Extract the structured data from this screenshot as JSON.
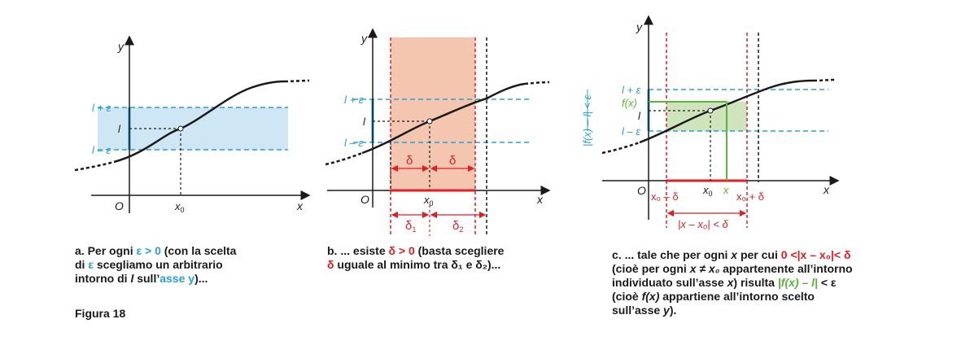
{
  "colors": {
    "blue": "#2a9fd8",
    "red": "#e01e24",
    "green": "#5ab33a",
    "curve": "#1a1a1a",
    "fill_blue": "#cfe6f5",
    "fill_orange": "#f4c6b0",
    "fill_green": "#cfe4bd"
  },
  "panel_a": {
    "axis_x": "x",
    "axis_y": "y",
    "origin": "O",
    "x0": "x",
    "x0_sub": "0",
    "l_plus": "l + ε",
    "l": "l",
    "l_minus": "l – ε",
    "caption": {
      "letter": "a.",
      "line1_part1": "Per ogni",
      "eps_gt": "ε > 0",
      "line1_part2": "(con la scelta",
      "line2_part1": "di",
      "eps": "ε",
      "line2_part2": "scegliamo un arbitrario",
      "line3_part1": "intorno di",
      "l": "l",
      "line3_part2": "sull’",
      "asse_y": "asse y",
      "line3_end": ")..."
    }
  },
  "panel_b": {
    "axis_x": "x",
    "axis_y": "y",
    "origin": "O",
    "x0": "x",
    "x0_sub": "0",
    "l_plus": "l + ε",
    "l": "l",
    "l_minus": "l – ε",
    "delta": "δ",
    "delta1": "δ",
    "delta1_sub": "1",
    "delta2": "δ",
    "delta2_sub": "2",
    "caption": {
      "letter": "b.",
      "line1_part1": "... esiste",
      "delta_gt": "δ > 0",
      "line1_part2": "(basta scegliere",
      "delta": "δ",
      "line2_part2": "uguale al minimo tra δ₁ e δ₂)..."
    }
  },
  "panel_c": {
    "axis_x": "x",
    "axis_y": "y",
    "origin": "O",
    "x0": "x",
    "x0_sub": "0",
    "x_mark": "x",
    "l_plus": "l + ε",
    "fx": "f(x)",
    "l": "l",
    "l_minus": "l – ε",
    "x0_minus_delta": "x₀ – δ",
    "x0_plus_delta": "x₀ + δ",
    "abs_x": "|x – x₀| < δ",
    "abs_f": "|f(x) – l| < ε",
    "caption": {
      "letter": "c.",
      "line1_part1": "... tale che per ogni",
      "line1_x": "x",
      "line1_part2": "per cui",
      "line1_cond": "0 <|x – x₀|< δ",
      "line2_part1": "(cioè per ogni",
      "line2_neq": "x ≠ x₀",
      "line2_part2": "appartenente all’intorno",
      "line3_part1": "individuato sull’asse",
      "line3_x": "x",
      "line3_part2": ") risulta",
      "line3_cond": "|f(x) – l|",
      "line3_cond2": "< ε",
      "line4_part1": "(cioè",
      "line4_fx": "f(x)",
      "line4_part2": "appartiene all’intorno scelto",
      "line5_part1": "sull’asse",
      "line5_y": "y",
      "line5_part2": ")."
    }
  },
  "figure_label": "Figura 18"
}
